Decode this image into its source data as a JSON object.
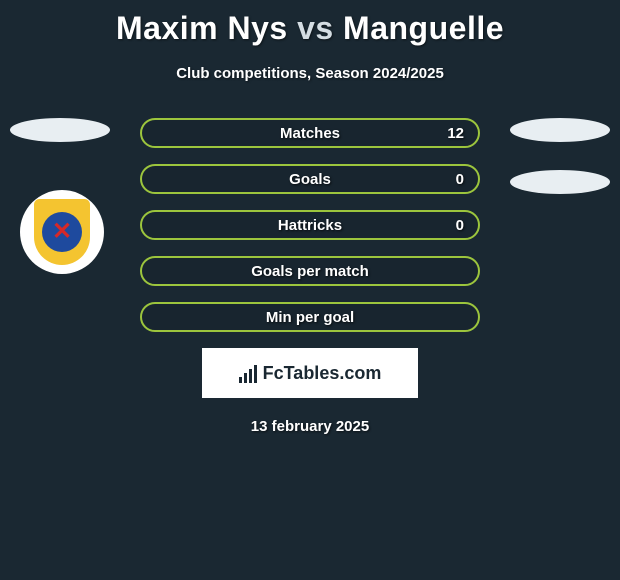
{
  "title": {
    "player1": "Maxim Nys",
    "vs": "vs",
    "player2": "Manguelle"
  },
  "subtitle": "Club competitions, Season 2024/2025",
  "stats": {
    "type": "bar",
    "border_color": "#9cc53d",
    "text_color": "#ffffff",
    "rows": [
      {
        "label": "Matches",
        "value": "12"
      },
      {
        "label": "Goals",
        "value": "0"
      },
      {
        "label": "Hattricks",
        "value": "0"
      },
      {
        "label": "Goals per match",
        "value": ""
      },
      {
        "label": "Min per goal",
        "value": ""
      }
    ]
  },
  "brand": {
    "name": "FcTables.com",
    "icon": "bar-chart-icon"
  },
  "date": "13 february 2025",
  "colors": {
    "background": "#1a2832",
    "accent": "#9cc53d",
    "ellipse": "#e8eef2",
    "badge_outer": "#ffffff",
    "badge_shield": "#f4c430",
    "badge_circle": "#1e4a9e",
    "badge_x": "#d62828"
  }
}
